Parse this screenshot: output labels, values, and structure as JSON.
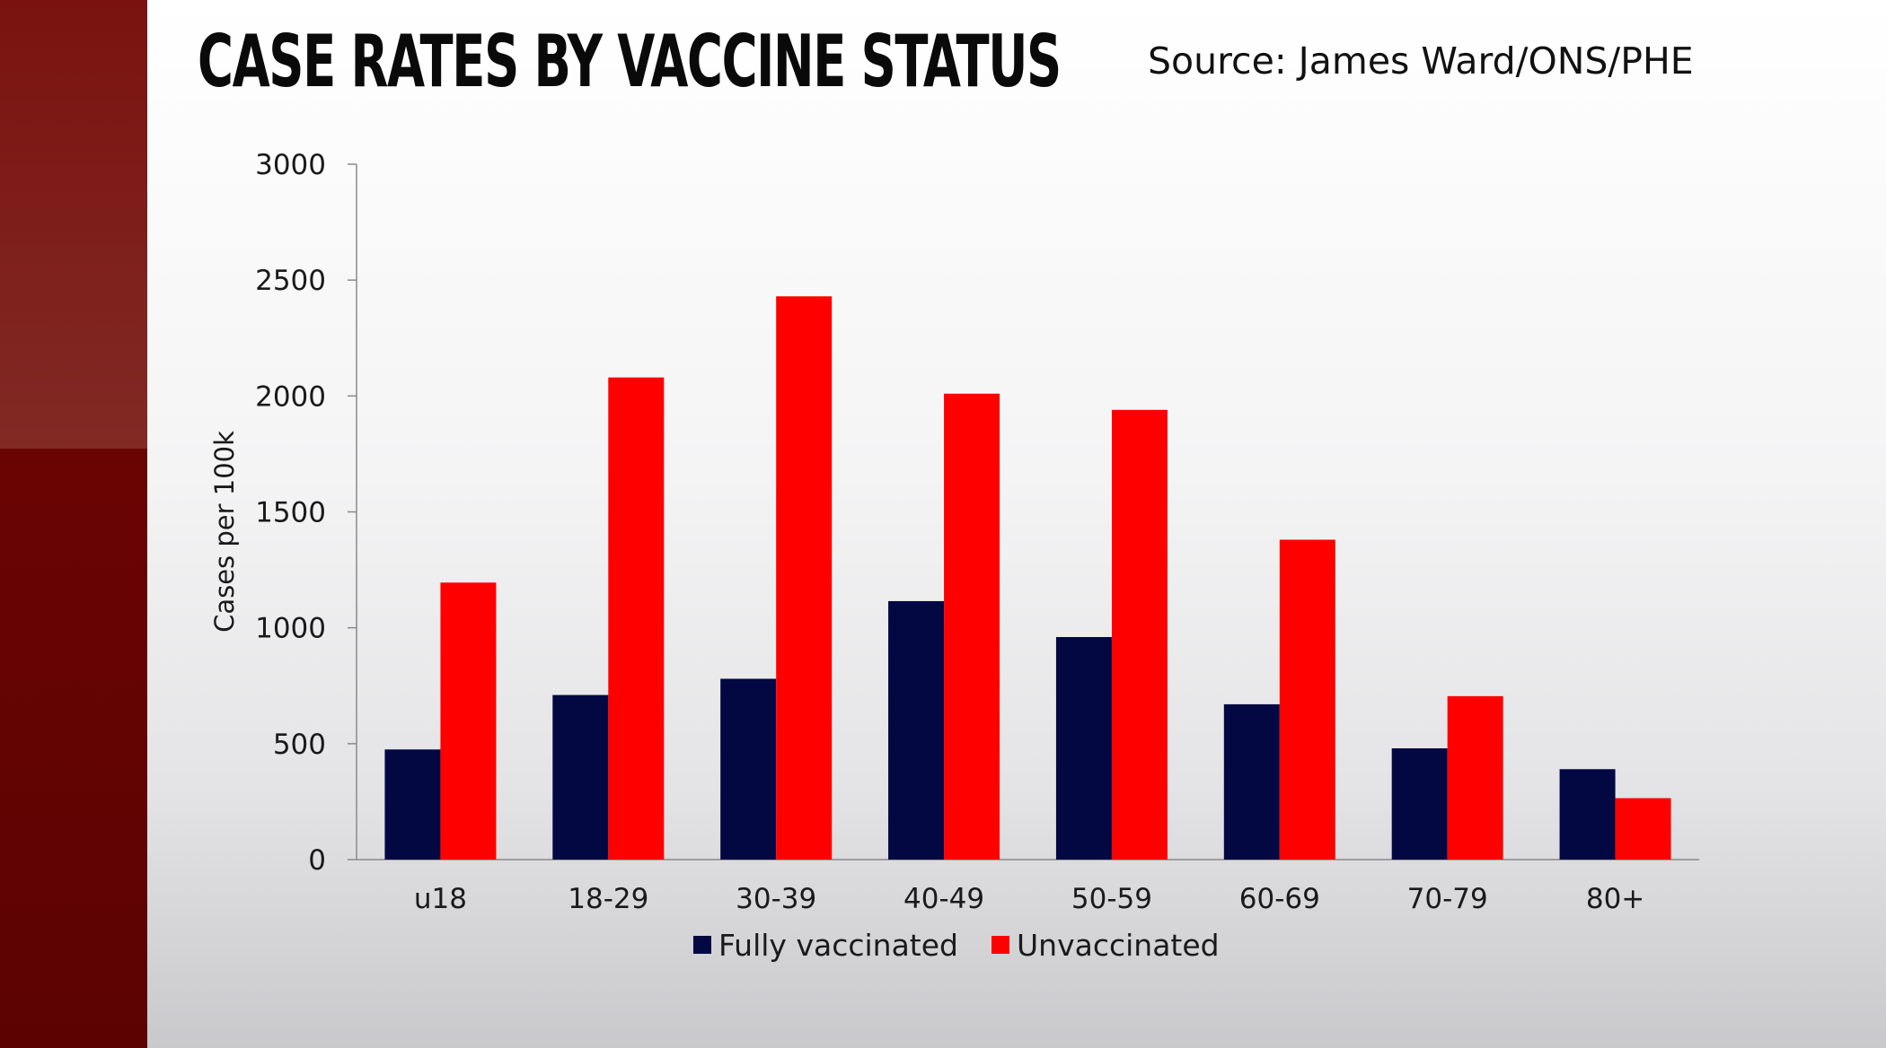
{
  "header": {
    "title": "CASE RATES BY VACCINE STATUS",
    "source": "Source: James Ward/ONS/PHE"
  },
  "chart_data": {
    "type": "bar",
    "title": "CASE RATES BY VACCINE STATUS",
    "xlabel": "",
    "ylabel": "Cases per 100k",
    "ylim": [
      0,
      3000
    ],
    "yticks": [
      0,
      500,
      1000,
      1500,
      2000,
      2500,
      3000
    ],
    "categories": [
      "u18",
      "18-29",
      "30-39",
      "40-49",
      "50-59",
      "60-69",
      "70-79",
      "80+"
    ],
    "series": [
      {
        "name": "Fully vaccinated",
        "color": "#030843",
        "values": [
          475,
          710,
          780,
          1115,
          960,
          670,
          480,
          390
        ]
      },
      {
        "name": "Unvaccinated",
        "color": "#ff0000",
        "values": [
          1195,
          2080,
          2430,
          2010,
          1940,
          1380,
          705,
          265
        ]
      }
    ],
    "grid": false,
    "legend_position": "bottom"
  }
}
